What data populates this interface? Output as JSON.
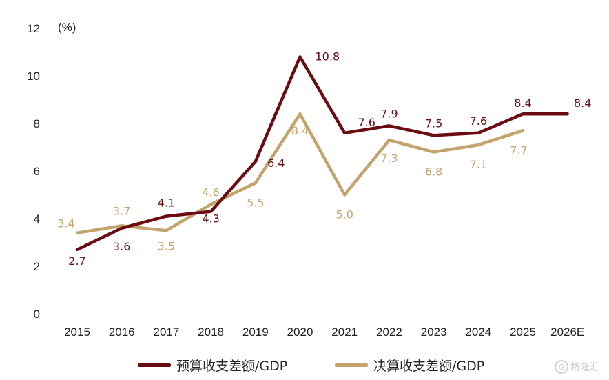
{
  "chart_data": {
    "type": "line",
    "title": "",
    "xlabel": "",
    "ylabel": "",
    "unit_label": "(%)",
    "categories": [
      "2015",
      "2016",
      "2017",
      "2018",
      "2019",
      "2020",
      "2021",
      "2022",
      "2023",
      "2024",
      "2025",
      "2026E"
    ],
    "y_ticks": [
      "0",
      "2",
      "4",
      "6",
      "8",
      "10",
      "12"
    ],
    "ylim": [
      0,
      12
    ],
    "grid": false,
    "legend_position": "bottom",
    "series": [
      {
        "name": "预算收支差额/GDP",
        "color": "#6b0b12",
        "values": [
          2.7,
          3.6,
          4.1,
          4.3,
          6.4,
          10.8,
          7.6,
          7.9,
          7.5,
          7.6,
          8.4,
          8.4
        ],
        "labels": [
          "2.7",
          "3.6",
          "4.1",
          "4.3",
          "6.4",
          "10.8",
          "7.6",
          "7.9",
          "7.5",
          "7.6",
          "8.4",
          "8.4"
        ]
      },
      {
        "name": "决算收支差额/GDP",
        "color": "#c3a46c",
        "values": [
          3.4,
          3.7,
          3.5,
          4.6,
          5.5,
          8.4,
          5.0,
          7.3,
          6.8,
          7.1,
          7.7,
          null
        ],
        "labels": [
          "3.4",
          "3.7",
          "3.5",
          "4.6",
          "5.5",
          "8.4",
          "5.0",
          "7.3",
          "6.8",
          "7.1",
          "7.7",
          null
        ]
      }
    ]
  },
  "watermark": {
    "logo_glyph": "G",
    "text": "格隆汇"
  }
}
